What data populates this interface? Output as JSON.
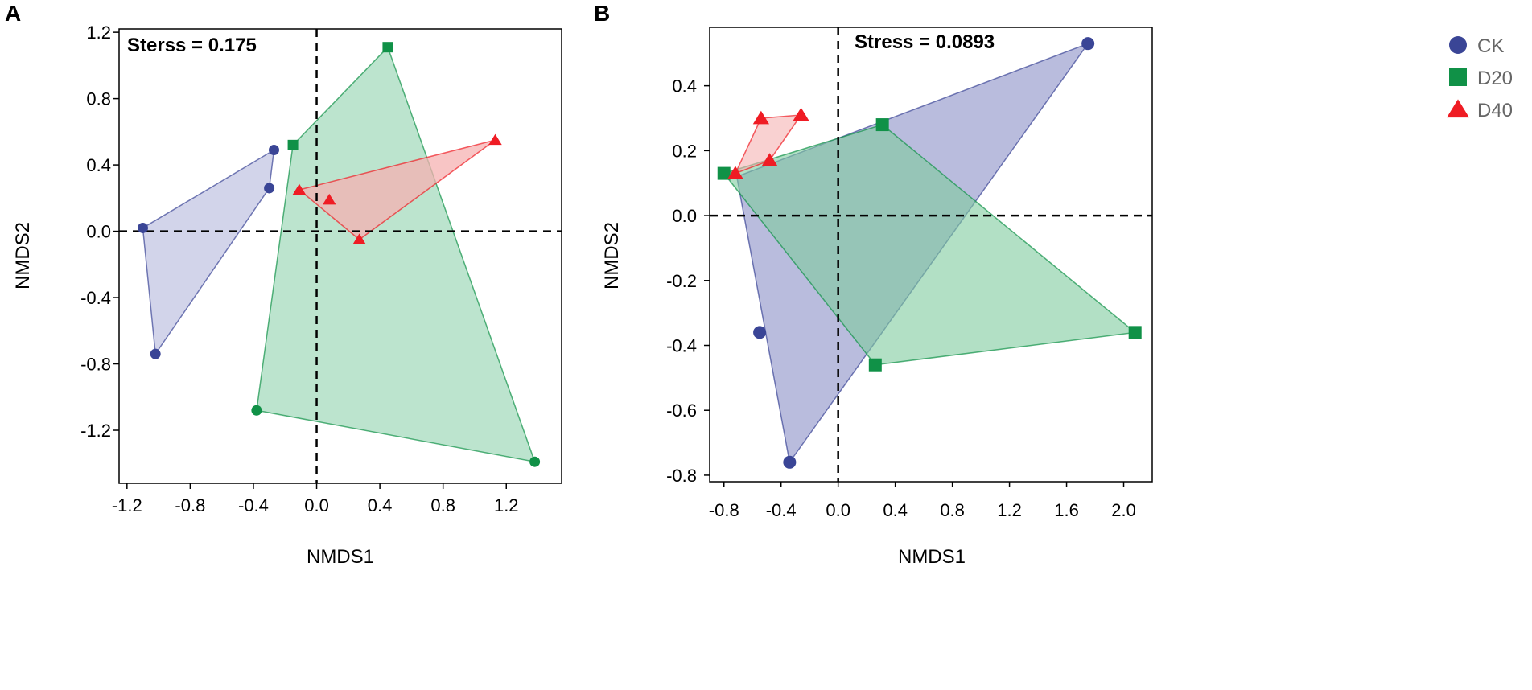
{
  "chart_data": [
    {
      "panel": "A",
      "type": "scatter",
      "xlabel": "NMDS1",
      "ylabel": "NMDS2",
      "annotation": "Sterss = 0.175",
      "xlim": [
        -1.25,
        1.55
      ],
      "ylim": [
        -1.52,
        1.22
      ],
      "xticks": [
        -1.2,
        -0.8,
        -0.4,
        0.0,
        0.4,
        0.8,
        1.2
      ],
      "xtick_labels": [
        "-1.2",
        "-0.8",
        "-0.4",
        "0.0",
        "0.4",
        "0.8",
        "1.2"
      ],
      "yticks": [
        -1.2,
        -0.8,
        -0.4,
        0.0,
        0.4,
        0.8,
        1.2
      ],
      "ytick_labels": [
        "-1.2",
        "-0.8",
        "-0.4",
        "0.0",
        "0.4",
        "0.8",
        "1.2"
      ],
      "reference_lines": {
        "x": 0,
        "y": 0,
        "style": "dashed"
      },
      "series": [
        {
          "name": "CK",
          "marker": "circle",
          "color": "#3a4596",
          "fill": "#c3c6e3",
          "points": [
            [
              -1.1,
              0.02
            ],
            [
              -0.27,
              0.49
            ],
            [
              -0.3,
              0.26
            ],
            [
              -1.02,
              -0.74
            ]
          ],
          "hull": [
            [
              -1.1,
              0.02
            ],
            [
              -0.27,
              0.49
            ],
            [
              -0.3,
              0.26
            ],
            [
              -1.02,
              -0.74
            ]
          ]
        },
        {
          "name": "D20",
          "marker": "mixed",
          "color": "#109147",
          "fill": "#a6dbbe",
          "points": [
            [
              -0.15,
              0.52,
              "square"
            ],
            [
              0.45,
              1.11,
              "square"
            ],
            [
              -0.38,
              -1.08,
              "circle"
            ],
            [
              1.38,
              -1.39,
              "circle"
            ]
          ],
          "hull": [
            [
              -0.15,
              0.52
            ],
            [
              0.45,
              1.11
            ],
            [
              1.38,
              -1.39
            ],
            [
              -0.38,
              -1.08
            ]
          ]
        },
        {
          "name": "D40",
          "marker": "triangle",
          "color": "#ef1c24",
          "fill": "#f5b2b2",
          "points": [
            [
              -0.11,
              0.25
            ],
            [
              0.08,
              0.19
            ],
            [
              0.27,
              -0.05
            ],
            [
              1.13,
              0.55
            ]
          ],
          "hull": [
            [
              -0.11,
              0.25
            ],
            [
              1.13,
              0.55
            ],
            [
              0.27,
              -0.05
            ]
          ]
        }
      ]
    },
    {
      "panel": "B",
      "type": "scatter",
      "xlabel": "NMDS1",
      "ylabel": "NMDS2",
      "annotation": "Stress = 0.0893",
      "xlim": [
        -0.9,
        2.2
      ],
      "ylim": [
        -0.82,
        0.58
      ],
      "xticks": [
        -0.8,
        -0.4,
        0.0,
        0.4,
        0.8,
        1.2,
        1.6,
        2.0
      ],
      "xtick_labels": [
        "-0.8",
        "-0.4",
        "0.0",
        "0.4",
        "0.8",
        "1.2",
        "1.6",
        "2.0"
      ],
      "yticks": [
        -0.8,
        -0.6,
        -0.4,
        -0.2,
        0.0,
        0.2,
        0.4
      ],
      "ytick_labels": [
        "-0.8",
        "-0.6",
        "-0.4",
        "-0.2",
        "0.0",
        "0.2",
        "0.4"
      ],
      "reference_lines": {
        "x": 0,
        "y": 0,
        "style": "dashed"
      },
      "series": [
        {
          "name": "CK",
          "marker": "circle",
          "color": "#3a4596",
          "fill": "#8a8fc6",
          "points": [
            [
              1.75,
              0.53
            ],
            [
              -0.55,
              -0.36
            ],
            [
              -0.34,
              -0.76
            ]
          ],
          "hull": [
            [
              1.75,
              0.53
            ],
            [
              -0.34,
              -0.76
            ],
            [
              -0.71,
              0.12
            ]
          ]
        },
        {
          "name": "D20",
          "marker": "square",
          "color": "#109147",
          "fill": "#7fcb9e",
          "points": [
            [
              -0.8,
              0.13
            ],
            [
              0.31,
              0.28
            ],
            [
              2.08,
              -0.36
            ],
            [
              0.26,
              -0.46
            ]
          ],
          "hull": [
            [
              -0.8,
              0.13
            ],
            [
              0.31,
              0.28
            ],
            [
              2.08,
              -0.36
            ],
            [
              0.26,
              -0.46
            ]
          ]
        },
        {
          "name": "D40",
          "marker": "triangle",
          "color": "#ef1c24",
          "fill": "#f5b2b2",
          "points": [
            [
              -0.72,
              0.13
            ],
            [
              -0.54,
              0.3
            ],
            [
              -0.26,
              0.31
            ],
            [
              -0.48,
              0.17
            ]
          ],
          "hull": [
            [
              -0.72,
              0.13
            ],
            [
              -0.54,
              0.3
            ],
            [
              -0.26,
              0.31
            ],
            [
              -0.48,
              0.17
            ]
          ]
        }
      ]
    }
  ],
  "legend": {
    "placement": "right",
    "items": [
      {
        "label": "CK",
        "marker": "circle",
        "color": "#3a4596"
      },
      {
        "label": "D20",
        "marker": "square",
        "color": "#109147"
      },
      {
        "label": "D40",
        "marker": "triangle",
        "color": "#ef1c24"
      }
    ]
  }
}
